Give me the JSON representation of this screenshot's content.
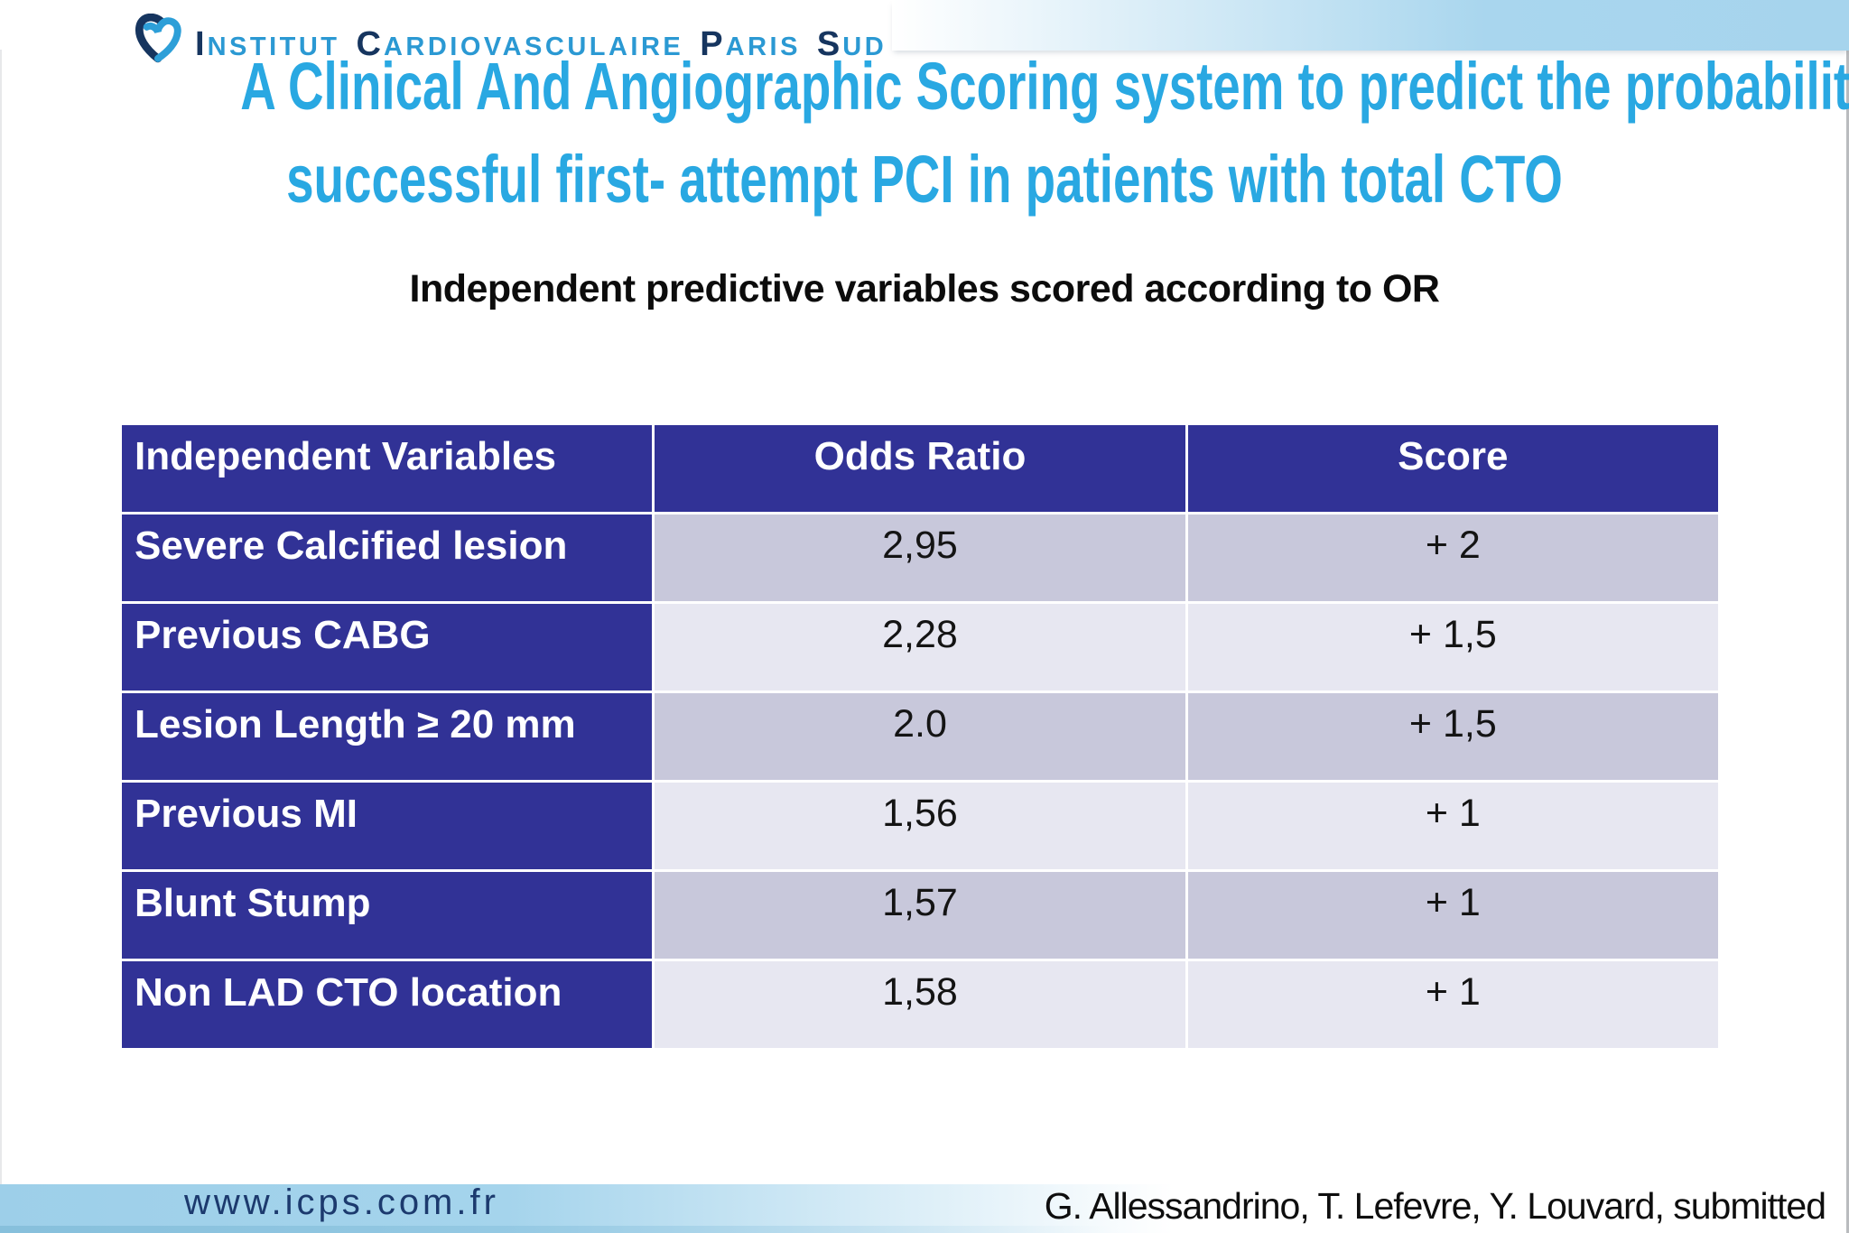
{
  "logo": {
    "organization": "Institut Cardiovasculaire Paris Sud",
    "heart_icon": "icps-heart-logo",
    "words": [
      {
        "lead": "I",
        "rest": "NSTITUT"
      },
      {
        "lead": "C",
        "rest": "ARDIOVASCULAIRE"
      },
      {
        "lead": "P",
        "rest": "ARIS"
      },
      {
        "lead": "S",
        "rest": "UD"
      }
    ],
    "colors": {
      "lead": "#16355f",
      "rest": "#2b99d3"
    }
  },
  "title": {
    "line1": "A Clinical And Angiographic Scoring system to predict the probability of",
    "line2": "successful first- attempt PCI in patients with total CTO",
    "color": "#29a8e2"
  },
  "subtitle": "Independent predictive variables scored according to OR",
  "table": {
    "columns": [
      "Independent Variables",
      "Odds Ratio",
      "Score"
    ],
    "rows": [
      {
        "variable": "Severe Calcified lesion",
        "odds_ratio": "2,95",
        "score": "+ 2"
      },
      {
        "variable": "Previous CABG",
        "odds_ratio": "2,28",
        "score": "+ 1,5"
      },
      {
        "variable": "Lesion Length ≥ 20 mm",
        "odds_ratio": "2.0",
        "score": "+ 1,5"
      },
      {
        "variable": "Previous MI",
        "odds_ratio": "1,56",
        "score": "+ 1"
      },
      {
        "variable": "Blunt Stump",
        "odds_ratio": "1,57",
        "score": "+ 1"
      },
      {
        "variable": "Non LAD CTO location",
        "odds_ratio": "1,58",
        "score": "+ 1"
      }
    ],
    "colors": {
      "header_bg": "#313296",
      "label_bg": "#313296",
      "stripe_dark": "#c8c8db",
      "stripe_light": "#e7e7f1"
    }
  },
  "footer": {
    "website": "www.icps.com.fr",
    "credits": "G. Allessandrino, T. Lefevre, Y. Louvard, submitted",
    "band_color": "#a5d4ec"
  }
}
